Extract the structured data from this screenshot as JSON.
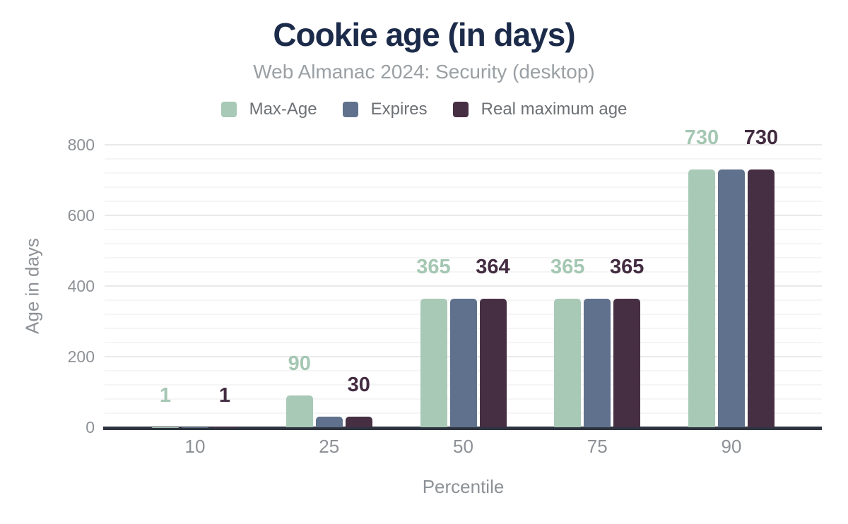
{
  "chart_data": {
    "type": "bar",
    "title": "Cookie age (in days)",
    "subtitle": "Web Almanac 2024: Security (desktop)",
    "xlabel": "Percentile",
    "ylabel": "Age in days",
    "categories": [
      "10",
      "25",
      "50",
      "75",
      "90"
    ],
    "ylim": [
      0,
      800
    ],
    "yticks": [
      0,
      200,
      400,
      600,
      800
    ],
    "minor_grid_step": 40,
    "grid": "on",
    "legend_position": "top",
    "series": [
      {
        "name": "Max-Age",
        "color": "#a8c9b6",
        "label_color": "#a5c7b3",
        "values": [
          1,
          90,
          365,
          365,
          730
        ],
        "data_labels": [
          "1",
          "90",
          "365",
          "365",
          "730"
        ]
      },
      {
        "name": "Expires",
        "color": "#5f718c",
        "label_color": "#5f718c",
        "values": [
          1,
          30,
          365,
          365,
          730
        ],
        "data_labels": []
      },
      {
        "name": "Real maximum age",
        "color": "#462f43",
        "label_color": "#432c41",
        "values": [
          1,
          30,
          364,
          365,
          730
        ],
        "data_labels": [
          "1",
          "30",
          "364",
          "365",
          "730"
        ]
      }
    ]
  }
}
